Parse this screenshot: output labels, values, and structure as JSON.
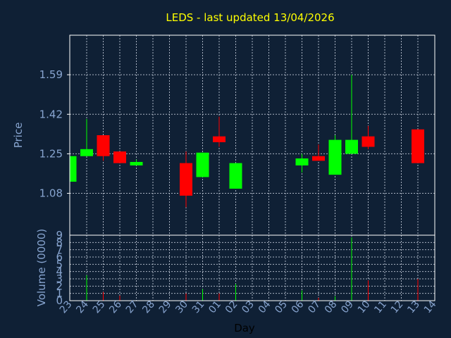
{
  "colors": {
    "background": "#0f2035",
    "panel": "#0f2035",
    "frame": "#ffffff",
    "grid": "#aab3c2",
    "title": "#ffff00",
    "axis_text": "#87a4cf",
    "day_text": "#000000",
    "up": "#00ff00",
    "down": "#ff0000"
  },
  "chart_data": {
    "type": "candlestick",
    "title": "LEDS - last updated 13/04/2026",
    "xlabel": "Day",
    "price_axis": {
      "label": "Price",
      "ticks": [
        "1.59",
        "1.42",
        "1.25",
        "1.08"
      ],
      "tick_values": [
        1.59,
        1.42,
        1.25,
        1.08
      ],
      "range": [
        0.9,
        1.76
      ]
    },
    "volume_axis": {
      "label": "Volume (0000)",
      "ticks": [
        "9",
        "8",
        "7",
        "6",
        "5",
        "4",
        "3",
        "2",
        "1",
        "0"
      ],
      "range": [
        0,
        9
      ]
    },
    "grid": true,
    "days": [
      "23",
      "24",
      "25",
      "26",
      "27",
      "28",
      "29",
      "30",
      "31",
      "01",
      "02",
      "03",
      "04",
      "05",
      "06",
      "07",
      "08",
      "09",
      "10",
      "11",
      "12",
      "13",
      "14"
    ],
    "candles": [
      {
        "day": "23",
        "open": 1.13,
        "close": 1.24,
        "high": 1.24,
        "low": 1.13
      },
      {
        "day": "24",
        "open": 1.24,
        "close": 1.27,
        "high": 1.4,
        "low": 1.24
      },
      {
        "day": "25",
        "open": 1.33,
        "close": 1.24,
        "high": 1.33,
        "low": 1.22
      },
      {
        "day": "26",
        "open": 1.26,
        "close": 1.21,
        "high": 1.26,
        "low": 1.21
      },
      {
        "day": "27",
        "open": 1.2,
        "close": 1.215,
        "high": 1.225,
        "low": 1.2
      },
      {
        "day": "30",
        "open": 1.21,
        "close": 1.07,
        "high": 1.26,
        "low": 1.02
      },
      {
        "day": "31",
        "open": 1.15,
        "close": 1.255,
        "high": 1.255,
        "low": 1.15
      },
      {
        "day": "01",
        "open": 1.325,
        "close": 1.3,
        "high": 1.41,
        "low": 1.28
      },
      {
        "day": "02",
        "open": 1.1,
        "close": 1.21,
        "high": 1.21,
        "low": 1.1
      },
      {
        "day": "06",
        "open": 1.2,
        "close": 1.23,
        "high": 1.25,
        "low": 1.17
      },
      {
        "day": "07",
        "open": 1.24,
        "close": 1.22,
        "high": 1.29,
        "low": 1.22
      },
      {
        "day": "08",
        "open": 1.16,
        "close": 1.31,
        "high": 1.33,
        "low": 1.16
      },
      {
        "day": "09",
        "open": 1.25,
        "close": 1.31,
        "high": 1.59,
        "low": 1.25
      },
      {
        "day": "10",
        "open": 1.325,
        "close": 1.28,
        "high": 1.37,
        "low": 1.27
      },
      {
        "day": "13",
        "open": 1.355,
        "close": 1.21,
        "high": 1.355,
        "low": 1.21
      }
    ],
    "volume": [
      {
        "day": "24",
        "value": 3.5,
        "color": "up"
      },
      {
        "day": "25",
        "value": 1.2,
        "color": "down"
      },
      {
        "day": "26",
        "value": 0.7,
        "color": "down"
      },
      {
        "day": "30",
        "value": 1.0,
        "color": "down"
      },
      {
        "day": "31",
        "value": 1.6,
        "color": "up"
      },
      {
        "day": "01",
        "value": 1.0,
        "color": "down"
      },
      {
        "day": "02",
        "value": 2.3,
        "color": "up"
      },
      {
        "day": "06",
        "value": 1.4,
        "color": "up"
      },
      {
        "day": "07",
        "value": 0.4,
        "color": "down"
      },
      {
        "day": "08",
        "value": 0.6,
        "color": "up"
      },
      {
        "day": "09",
        "value": 8.7,
        "color": "up"
      },
      {
        "day": "10",
        "value": 2.8,
        "color": "down"
      },
      {
        "day": "13",
        "value": 3.0,
        "color": "down"
      }
    ]
  }
}
